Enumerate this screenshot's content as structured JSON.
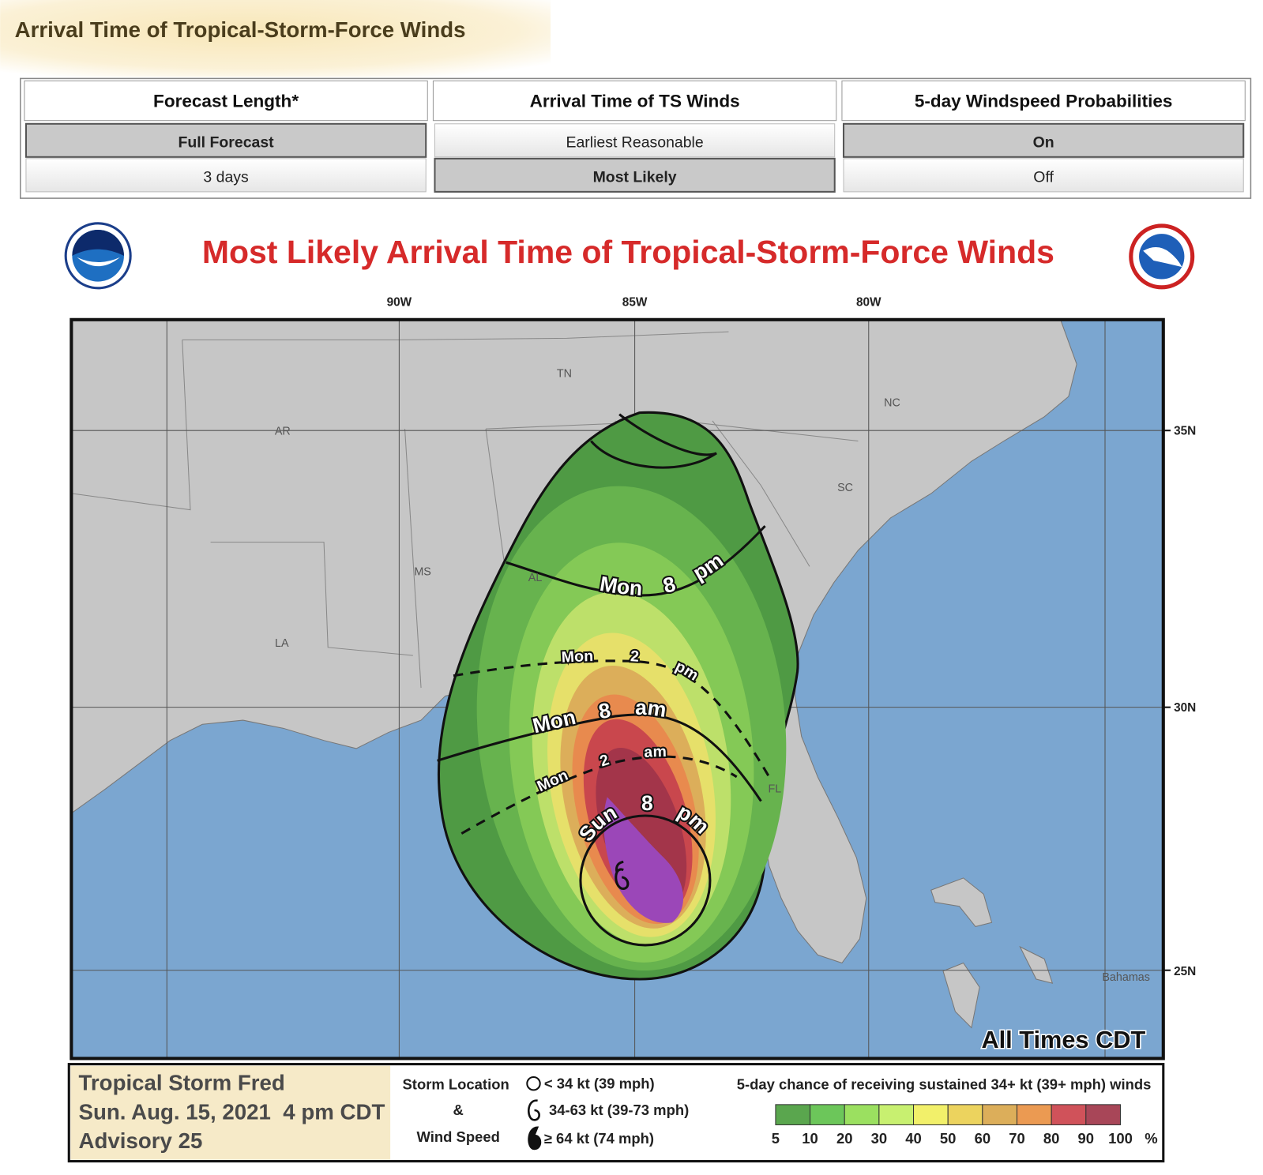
{
  "header": {
    "title": "Arrival Time of Tropical-Storm-Force Winds"
  },
  "table": {
    "headers": [
      "Forecast Length*",
      "Arrival Time of TS Winds",
      "5-day Windspeed Probabilities"
    ],
    "rows": [
      [
        "Full Forecast",
        "Earliest Reasonable",
        "On"
      ],
      [
        "3 days",
        "Most Likely",
        "Off"
      ]
    ]
  },
  "map": {
    "title": "Most Likely Arrival Time of Tropical-Storm-Force Winds",
    "lon_labels": [
      "90W",
      "85W",
      "80W"
    ],
    "lat_labels": [
      "35N",
      "30N",
      "25N"
    ],
    "state_labels": [
      "TN",
      "NC",
      "AR",
      "SC",
      "MS",
      "AL",
      "LA",
      "FL"
    ],
    "place_labels": [
      "Bahamas"
    ],
    "time_labels": [
      "Mon 8 pm",
      "Mon 2 pm",
      "Mon 8 am",
      "Mon 2 am",
      "Sun 8 pm"
    ],
    "corner_note": "All Times CDT",
    "storm": {
      "name": "Tropical Storm Fred",
      "date": "Sun. Aug. 15, 2021  4 pm CDT",
      "advisory": "Advisory 25"
    },
    "legend": {
      "storm_title": "Storm Location",
      "amp": "&",
      "wind_title": "Wind Speed",
      "items": [
        "< 34 kt (39 mph)",
        "34-63 kt (39-73 mph)",
        "≥ 64 kt (74 mph)"
      ],
      "prob_title": "5-day chance of receiving sustained 34+ kt (39+ mph) winds",
      "scale_labels": [
        5,
        10,
        20,
        30,
        40,
        50,
        60,
        70,
        80,
        90,
        100
      ],
      "unit": "%"
    }
  }
}
